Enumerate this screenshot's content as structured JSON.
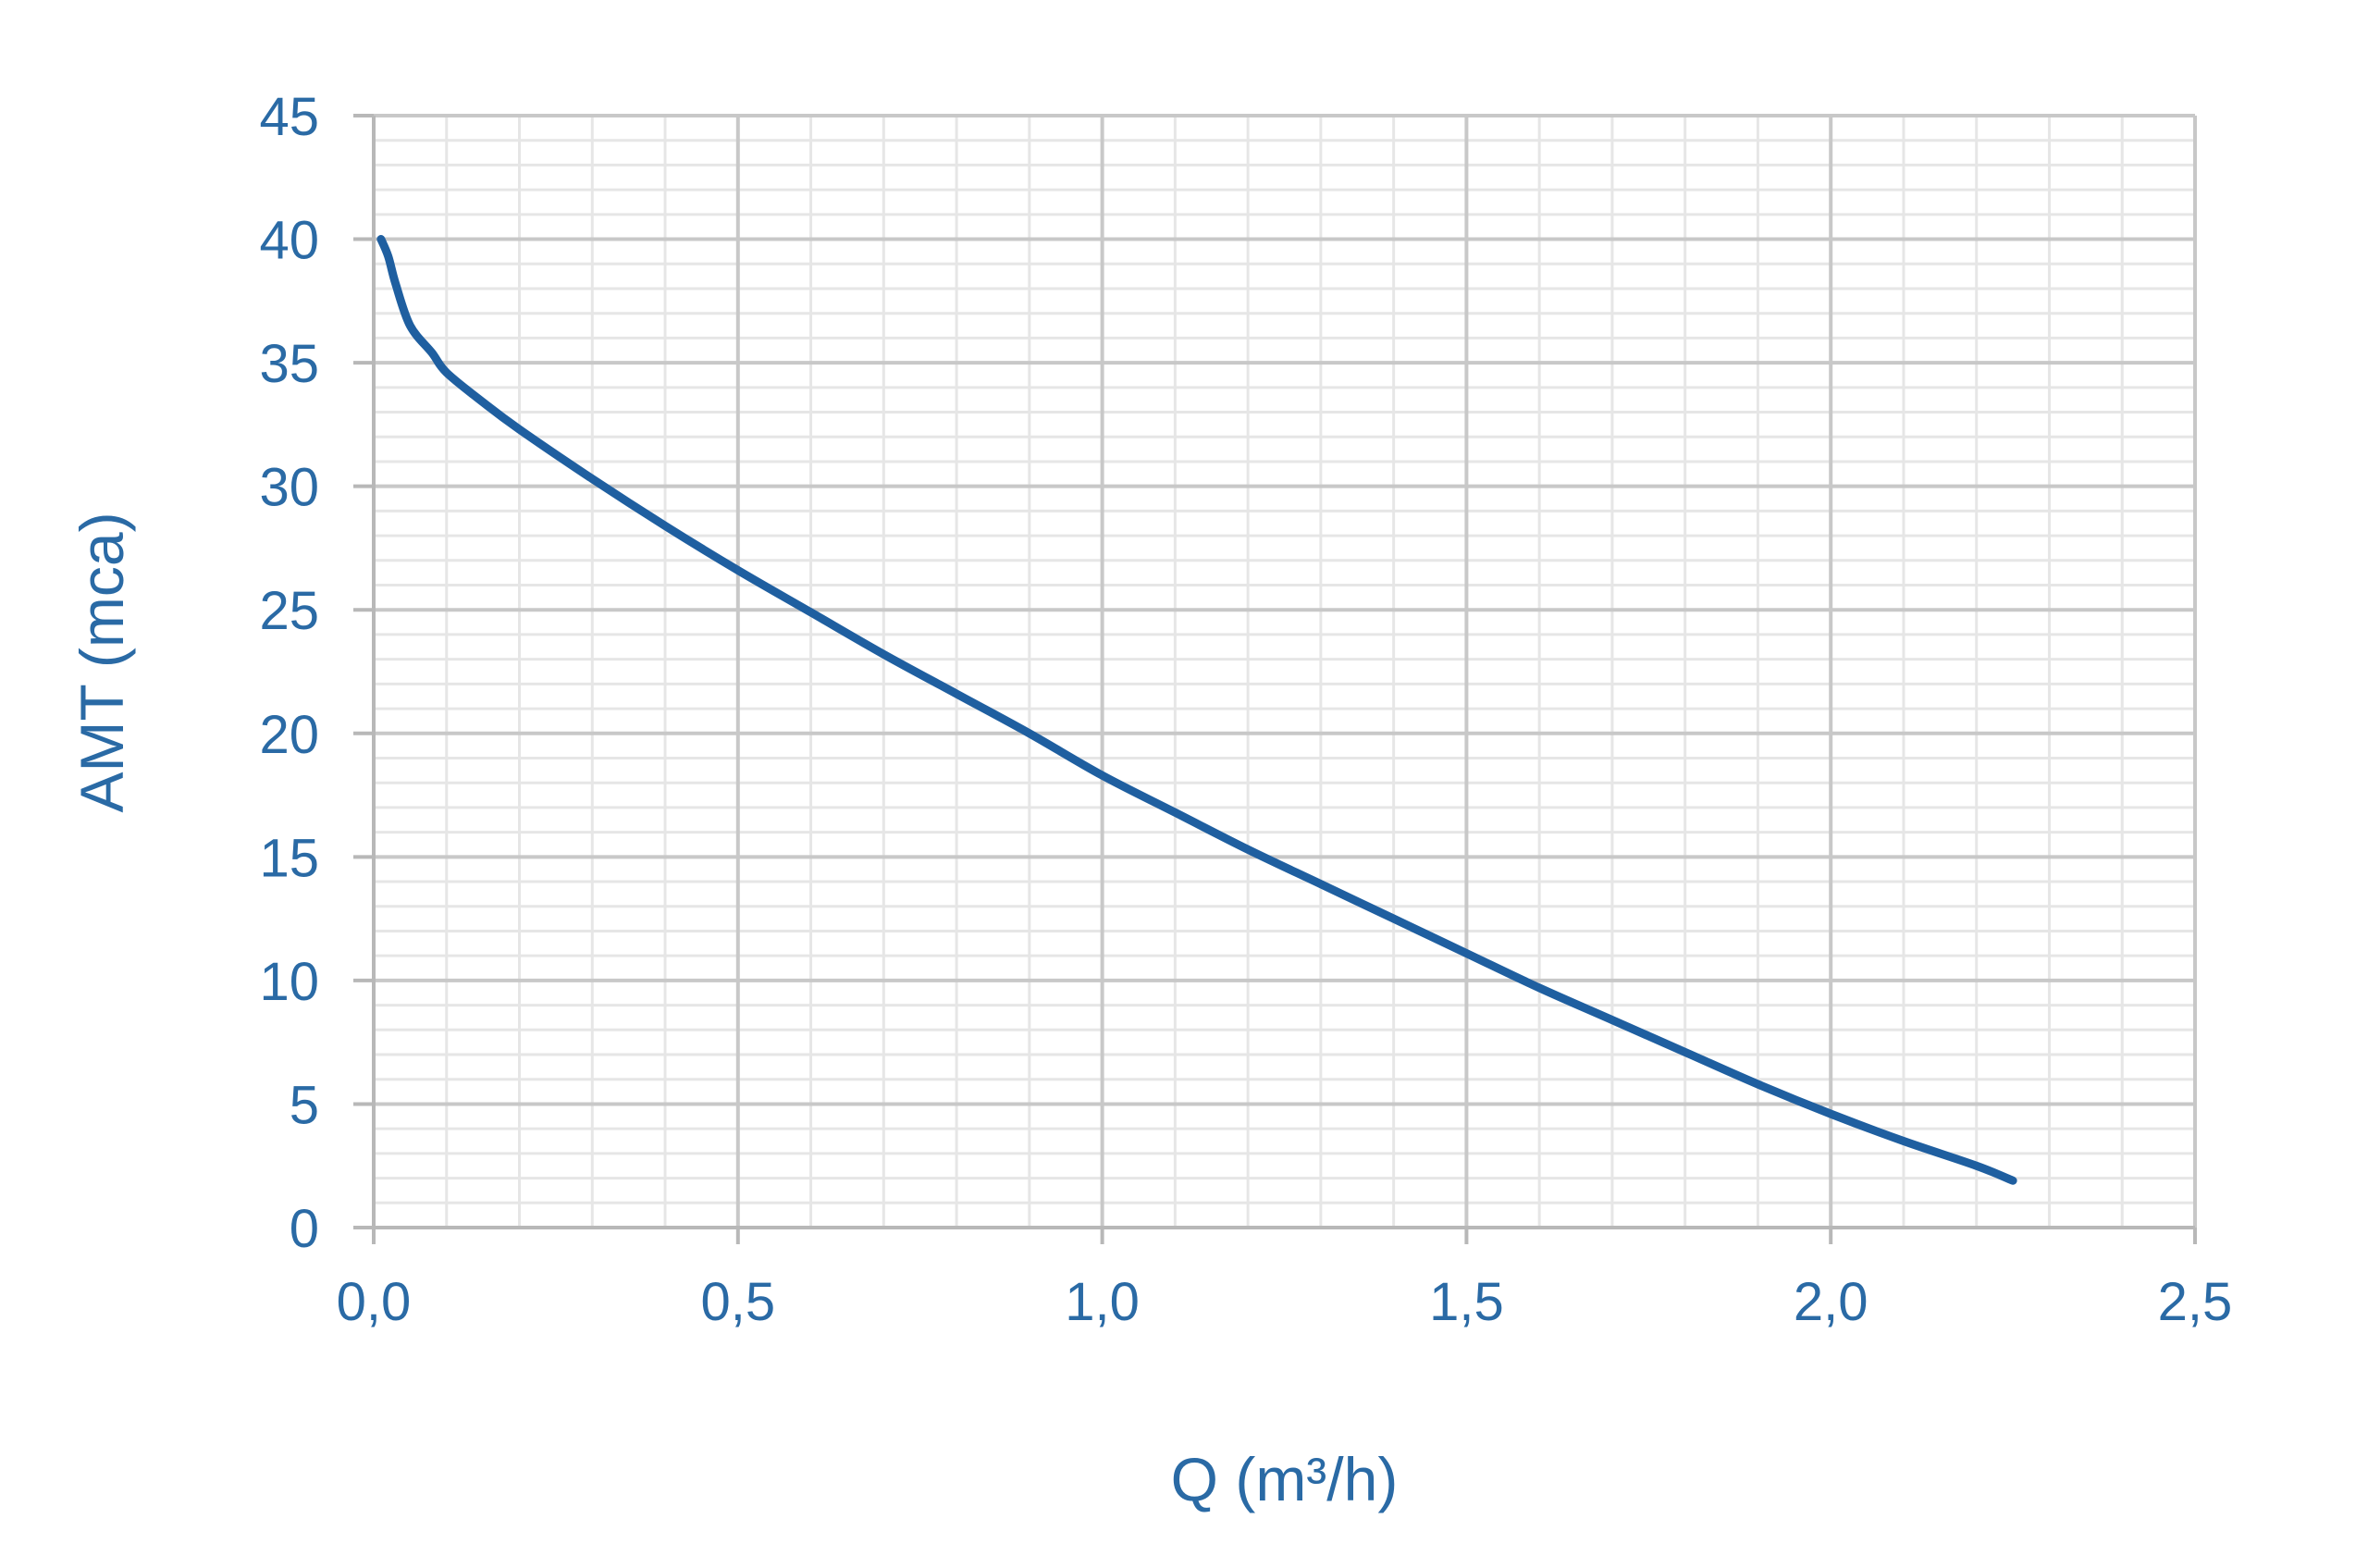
{
  "chart_data": {
    "type": "line",
    "title": "",
    "xlabel": "Q (m³/h)",
    "ylabel": "AMT (mca)",
    "xlim": [
      0,
      2.5
    ],
    "ylim": [
      0,
      45
    ],
    "x_ticks": [
      {
        "value": 0,
        "label": "0,0"
      },
      {
        "value": 0.5,
        "label": "0,5"
      },
      {
        "value": 1.0,
        "label": "1,0"
      },
      {
        "value": 1.5,
        "label": "1,5"
      },
      {
        "value": 2.0,
        "label": "2,0"
      },
      {
        "value": 2.5,
        "label": "2,5"
      }
    ],
    "y_ticks": [
      {
        "value": 0,
        "label": "0"
      },
      {
        "value": 5,
        "label": "5"
      },
      {
        "value": 10,
        "label": "10"
      },
      {
        "value": 15,
        "label": "15"
      },
      {
        "value": 20,
        "label": "20"
      },
      {
        "value": 25,
        "label": "25"
      },
      {
        "value": 30,
        "label": "30"
      },
      {
        "value": 35,
        "label": "35"
      },
      {
        "value": 40,
        "label": "40"
      },
      {
        "value": 45,
        "label": "45"
      }
    ],
    "grid": true,
    "minor_grid": true,
    "legend": "none",
    "series": [
      {
        "x": [
          0.01,
          0.02,
          0.03,
          0.05,
          0.08,
          0.1,
          0.15,
          0.2,
          0.3,
          0.4,
          0.5,
          0.6,
          0.7,
          0.8,
          0.9,
          1.0,
          1.1,
          1.2,
          1.3,
          1.4,
          1.5,
          1.6,
          1.7,
          1.8,
          1.9,
          2.0,
          2.1,
          2.2,
          2.25
        ],
        "y": [
          40.0,
          39.3,
          38.2,
          36.5,
          35.4,
          34.6,
          33.4,
          32.3,
          30.3,
          28.4,
          26.6,
          24.9,
          23.2,
          21.6,
          20.0,
          18.3,
          16.8,
          15.3,
          13.9,
          12.5,
          11.1,
          9.7,
          8.4,
          7.1,
          5.8,
          4.6,
          3.5,
          2.5,
          1.9
        ],
        "color": "#1f5fa0"
      }
    ],
    "colors": {
      "text": "#2a6aa5",
      "line": "#1f5fa0",
      "major_grid": "#c8c8c8",
      "minor_grid": "#e6e6e6",
      "axis": "#b8b8b8"
    }
  }
}
